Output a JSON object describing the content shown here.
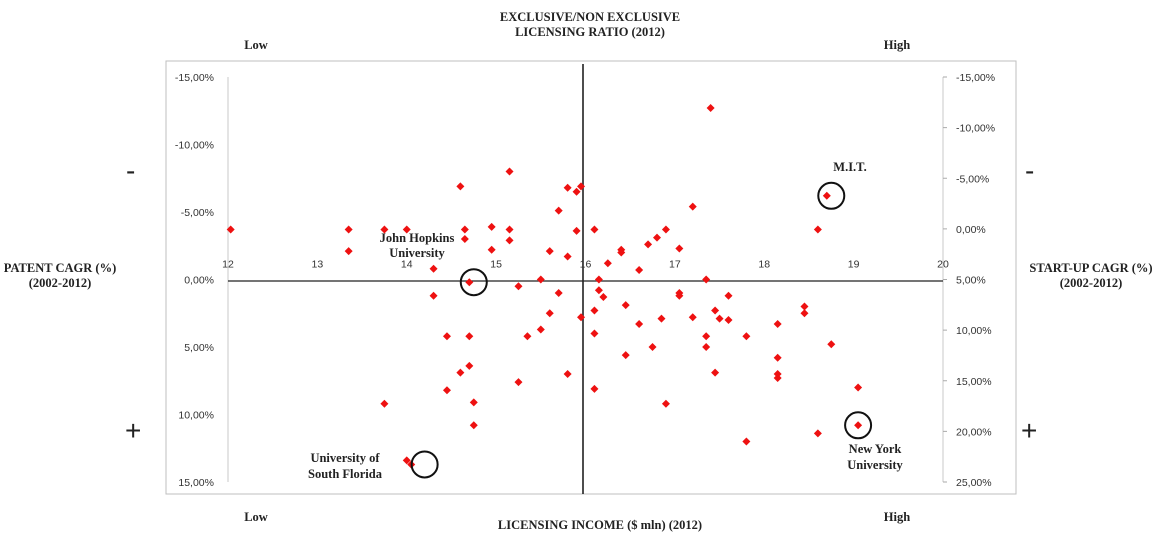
{
  "chart_data": {
    "type": "scatter",
    "top_title": [
      "EXCLUSIVE/NON EXCLUSIVE",
      "LICENSING RATIO (2012)"
    ],
    "bottom_title": "LICENSING INCOME ($ mln) (2012)",
    "left_title": [
      "PATENT CAGR (%)",
      "(2002-2012)"
    ],
    "right_title": [
      "START-UP CAGR (%)",
      "(2002-2012)"
    ],
    "corner_labels": {
      "top_left": "Low",
      "top_right": "High",
      "bottom_left": "Low",
      "bottom_right": "High"
    },
    "side_symbols": {
      "left_top": "-",
      "left_bottom": "+",
      "right_top": "-",
      "right_bottom": "+"
    },
    "x_axis": {
      "range": [
        12,
        20
      ],
      "ticks": [
        "12",
        "13",
        "14",
        "15",
        "16",
        "17",
        "18",
        "19",
        "20"
      ],
      "cross_at": 16
    },
    "left_axis": {
      "range": [
        -15,
        15
      ],
      "ticks": [
        "-15,00%",
        "-10,00%",
        "-5,00%",
        "0,00%",
        "5,00%",
        "10,00%",
        "15,00%"
      ]
    },
    "right_axis": {
      "range": [
        -15,
        25
      ],
      "ticks": [
        "-15,00%",
        "-10,00%",
        "-5,00%",
        "0,00%",
        "5,00%",
        "10,00%",
        "15,00%",
        "20,00%",
        "25,00%"
      ]
    },
    "marker_color": "#ee1111",
    "points": [
      [
        12.03,
        -3.7
      ],
      [
        13.35,
        -3.7
      ],
      [
        13.35,
        -2.1
      ],
      [
        13.75,
        -3.7
      ],
      [
        14.0,
        -3.7
      ],
      [
        13.75,
        9.2
      ],
      [
        14.3,
        -0.8
      ],
      [
        14.3,
        1.2
      ],
      [
        14.45,
        4.2
      ],
      [
        14.45,
        8.2
      ],
      [
        14.6,
        -6.9
      ],
      [
        14.6,
        6.9
      ],
      [
        14.65,
        -3.7
      ],
      [
        14.65,
        -3.0
      ],
      [
        14.7,
        0.2
      ],
      [
        14.7,
        4.2
      ],
      [
        14.7,
        6.4
      ],
      [
        14.75,
        9.1
      ],
      [
        14.75,
        10.8
      ],
      [
        14.95,
        -3.9
      ],
      [
        14.95,
        -2.2
      ],
      [
        15.15,
        -3.7
      ],
      [
        15.15,
        -2.9
      ],
      [
        15.15,
        -8.0
      ],
      [
        15.25,
        0.5
      ],
      [
        15.25,
        7.6
      ],
      [
        15.35,
        4.2
      ],
      [
        15.5,
        0.0
      ],
      [
        15.5,
        3.7
      ],
      [
        15.6,
        -2.1
      ],
      [
        15.6,
        2.5
      ],
      [
        15.7,
        -5.1
      ],
      [
        15.7,
        1.0
      ],
      [
        15.8,
        -6.8
      ],
      [
        15.8,
        -1.7
      ],
      [
        15.8,
        7.0
      ],
      [
        15.9,
        -6.5
      ],
      [
        15.9,
        -3.6
      ],
      [
        15.95,
        -6.9
      ],
      [
        15.95,
        2.8
      ],
      [
        16.1,
        -3.7
      ],
      [
        16.1,
        2.3
      ],
      [
        16.1,
        4.0
      ],
      [
        16.1,
        8.1
      ],
      [
        16.15,
        0.0
      ],
      [
        16.15,
        0.8
      ],
      [
        16.2,
        1.3
      ],
      [
        16.25,
        -1.2
      ],
      [
        16.4,
        -2.2
      ],
      [
        16.4,
        -2.0
      ],
      [
        16.45,
        1.9
      ],
      [
        16.45,
        5.6
      ],
      [
        16.6,
        -0.7
      ],
      [
        16.6,
        3.3
      ],
      [
        16.7,
        -2.6
      ],
      [
        16.75,
        5.0
      ],
      [
        16.8,
        -3.1
      ],
      [
        16.85,
        2.9
      ],
      [
        16.9,
        -3.7
      ],
      [
        16.9,
        9.2
      ],
      [
        17.05,
        -2.3
      ],
      [
        17.05,
        1.0
      ],
      [
        17.05,
        1.2
      ],
      [
        17.2,
        -5.4
      ],
      [
        17.2,
        2.8
      ],
      [
        17.35,
        0.0
      ],
      [
        17.35,
        4.2
      ],
      [
        17.35,
        5.0
      ],
      [
        17.4,
        -12.7
      ],
      [
        17.45,
        2.3
      ],
      [
        17.45,
        6.9
      ],
      [
        17.5,
        2.9
      ],
      [
        17.6,
        1.2
      ],
      [
        17.6,
        3.0
      ],
      [
        17.8,
        4.2
      ],
      [
        17.8,
        12.0
      ],
      [
        18.15,
        3.3
      ],
      [
        18.15,
        5.8
      ],
      [
        18.15,
        7.0
      ],
      [
        18.15,
        7.3
      ],
      [
        18.45,
        2.0
      ],
      [
        18.45,
        2.5
      ],
      [
        18.6,
        -3.7
      ],
      [
        18.6,
        11.4
      ],
      [
        18.7,
        -6.2
      ],
      [
        18.75,
        4.8
      ],
      [
        19.05,
        8.0
      ],
      [
        19.05,
        10.8
      ],
      [
        14.0,
        13.4
      ],
      [
        14.05,
        13.7
      ]
    ],
    "highlights": [
      {
        "label": "M.I.T.",
        "x": 18.75,
        "y": -6.2
      },
      {
        "label": [
          "John Hopkins",
          "University"
        ],
        "x": 14.75,
        "y": 0.2
      },
      {
        "label": [
          "University of",
          "South Florida"
        ],
        "x": 14.2,
        "y": 13.7
      },
      {
        "label": [
          "New York",
          "University"
        ],
        "x": 19.05,
        "y": 10.8
      }
    ]
  }
}
